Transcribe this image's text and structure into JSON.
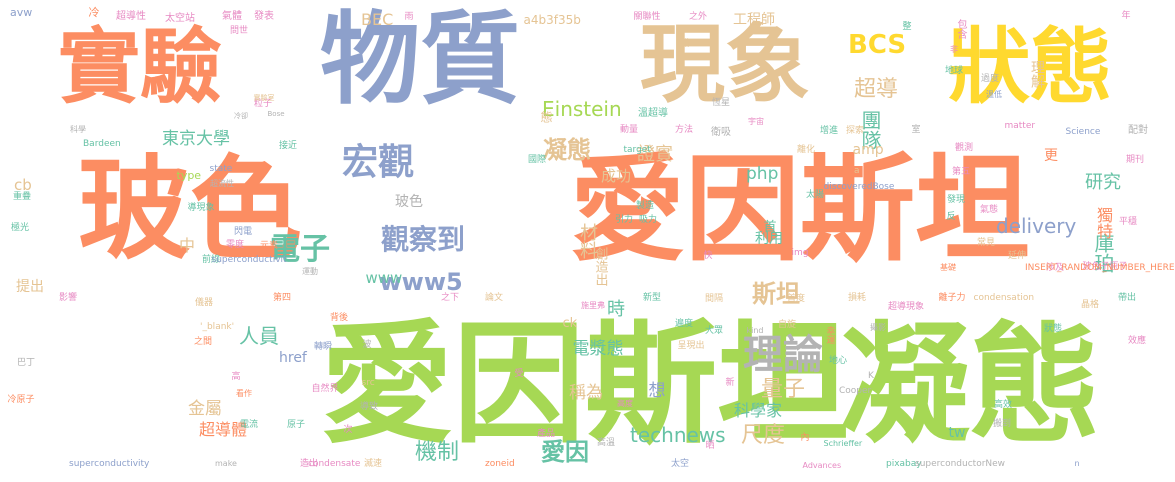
{
  "palette": {
    "orange": "#fc8d62",
    "blue": "#8da0cb",
    "green": "#a6d854",
    "yellow": "#ffd92f",
    "tan": "#e5c494",
    "teal": "#66c2a5",
    "pink": "#e78ac3",
    "gray": "#b3b3b3"
  },
  "words": [
    "愛因斯坦",
    "凝態",
    "玻色",
    "愛因斯坦",
    "物質",
    "實驗",
    "現象",
    "狀態",
    "理論",
    "宏觀",
    "觀察到",
    "電子",
    "BCS",
    "超導",
    "團隊",
    "Einstein",
    "凝態",
    "www5",
    "東京大學",
    "量子",
    "研究",
    "庫珀",
    "獨特",
    "php",
    "delivery",
    "斯坦",
    "尺度",
    "technews",
    "愛因",
    "科學家",
    "電漿態",
    "機制",
    "稱為",
    "材料",
    "想",
    "時",
    "金屬",
    "超導體",
    "人員",
    "證實",
    "成功",
    "工程師",
    "理解",
    "a4b3f35b",
    "BEC",
    "www",
    "中",
    "cb",
    "提出",
    "tw",
    "ck",
    "amp",
    "href",
    "玻色",
    "更",
    "態",
    "創造出",
    "利用",
    "首",
    "avw",
    "冷",
    "超導性",
    "太空站",
    "氣體",
    "發表",
    "雨",
    "關聯性",
    "之外",
    "整",
    "包含",
    "年",
    "問世",
    "錯",
    "非",
    "宇宙",
    "地球",
    "過度",
    "粒子",
    "恆星",
    "科學",
    "實驗室",
    "溫低",
    "冷卻",
    "Bose",
    "溫超導",
    "增進",
    "動量",
    "方法",
    "探索",
    "室",
    "matter",
    "Science",
    "配對",
    "Bardeen",
    "接近",
    "target",
    "衛吸",
    "離化",
    "觀測",
    "期刊",
    "國際",
    "第五",
    "a",
    "type",
    "state",
    "discoveredBose",
    "超流性",
    "太陽",
    "發現",
    "氣態",
    "重疊",
    "導現象",
    "閃電",
    "製造",
    "引力",
    "反",
    "平穩",
    "極光",
    "零度",
    "元素",
    "吸力",
    "前線",
    "superconductivit",
    "運動",
    "快",
    "img",
    "常見",
    "涉及",
    "延伸",
    "玻色子原子",
    "基礎",
    "INSERT_RANDOM_NUMBER_HERE",
    "影響",
    "第四",
    "之下",
    "論文",
    "施里弗",
    "新型",
    "間隔",
    "首度",
    "損耗",
    "超導現象",
    "離子力",
    "condensation",
    "晶格",
    "帶出",
    "儀器",
    "背後",
    "'_blank'",
    "之間",
    "遍度",
    "大眾",
    "kind",
    "自旋",
    "攝影",
    "狀態",
    "幸運",
    "效應",
    "波",
    "轉瞬",
    "地心",
    "高",
    "K",
    "巴丁",
    "冷原子",
    "看作",
    "自然界",
    "src",
    "受",
    "新",
    "Cooper",
    "呈現出",
    "高效",
    "導致",
    "高度",
    "搬到",
    "電流",
    "原子",
    "次",
    "產品",
    "高溫",
    "內",
    "晒",
    "Schrieffer",
    "superconductivity",
    "make",
    "造出",
    "condensate",
    "滅速",
    "zoneid",
    "太空",
    "Advances",
    "pixabay",
    "superconductorNew",
    "n"
  ]
}
